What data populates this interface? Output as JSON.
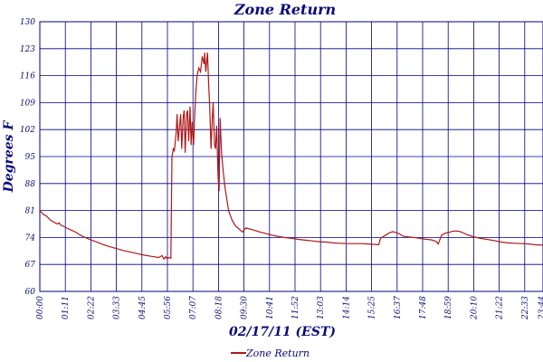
{
  "chart_data": {
    "type": "line",
    "title": "Zone Return",
    "xlabel": "02/17/11 (EST)",
    "ylabel": "Degrees F",
    "ylim": [
      60,
      130
    ],
    "yticks": [
      60,
      67,
      74,
      81,
      88,
      95,
      102,
      109,
      116,
      123,
      130
    ],
    "xlim": [
      0,
      1440
    ],
    "xtick_labels": [
      "00:00",
      "01:11",
      "02:22",
      "03:33",
      "04:45",
      "05:56",
      "07:07",
      "08:18",
      "09:30",
      "10:41",
      "11:52",
      "13:03",
      "14:14",
      "15:25",
      "16:37",
      "17:48",
      "18:59",
      "20:10",
      "21:22",
      "22:33",
      "23:44",
      "23:44"
    ],
    "grid": true,
    "legend_position": "bottom-center",
    "colors": {
      "series": "#b01818",
      "grid": "#000080",
      "text": "#0a0a7a"
    },
    "series": [
      {
        "name": "Zone Return",
        "x": [
          0,
          10,
          20,
          30,
          40,
          50,
          55,
          60,
          70,
          80,
          100,
          120,
          140,
          160,
          180,
          200,
          220,
          240,
          260,
          280,
          300,
          320,
          340,
          350,
          355,
          360,
          365,
          370,
          375,
          378,
          382,
          385,
          390,
          393,
          396,
          400,
          403,
          406,
          410,
          413,
          416,
          420,
          423,
          426,
          430,
          433,
          436,
          440,
          443,
          446,
          450,
          455,
          460,
          465,
          470,
          472,
          475,
          480,
          483,
          486,
          490,
          493,
          496,
          500,
          503,
          506,
          510,
          513,
          516,
          520,
          525,
          530,
          535,
          540,
          550,
          560,
          570,
          580,
          590,
          600,
          610,
          620,
          630,
          640,
          660,
          680,
          700,
          720,
          740,
          760,
          780,
          800,
          820,
          840,
          860,
          880,
          900,
          920,
          940,
          960,
          970,
          975,
          980,
          990,
          1000,
          1010,
          1020,
          1030,
          1040,
          1060,
          1080,
          1100,
          1120,
          1130,
          1135,
          1140,
          1150,
          1160,
          1170,
          1180,
          1190,
          1200,
          1210,
          1220,
          1240,
          1260,
          1280,
          1300,
          1320,
          1340,
          1360,
          1380,
          1400,
          1420,
          1440
        ],
        "y": [
          81,
          80,
          79.5,
          78.5,
          78,
          77.5,
          77.8,
          77.2,
          76.8,
          76.3,
          75.5,
          74.4,
          73.6,
          72.9,
          72.2,
          71.6,
          71.1,
          70.6,
          70.2,
          69.8,
          69.4,
          69.1,
          68.8,
          69.3,
          68.4,
          69,
          68.5,
          68.8,
          68.6,
          95,
          97,
          96.5,
          101,
          106,
          99,
          103,
          106,
          97,
          105,
          107,
          96,
          106,
          107,
          99,
          108,
          98,
          104,
          98,
          105,
          111,
          116,
          118,
          117,
          121,
          119,
          122,
          117,
          122,
          114,
          108,
          97,
          104,
          109,
          98,
          97,
          103,
          90,
          86,
          105,
          96,
          91,
          87,
          84,
          81,
          78.5,
          77,
          76.2,
          75.4,
          76.5,
          76.2,
          76,
          75.7,
          75.4,
          75.2,
          74.7,
          74.3,
          74,
          73.8,
          73.5,
          73.3,
          73.1,
          72.9,
          72.8,
          72.6,
          72.5,
          72.4,
          72.4,
          72.4,
          72.3,
          72.2,
          72.1,
          73.8,
          74.1,
          74.6,
          75.2,
          75.5,
          75.3,
          74.9,
          74.3,
          74.1,
          73.9,
          73.6,
          73.4,
          73.1,
          72.9,
          72.3,
          74.6,
          75.1,
          75.3,
          75.6,
          75.7,
          75.6,
          75.3,
          74.8,
          74.2,
          73.8,
          73.5,
          73.2,
          72.8,
          72.6,
          72.5,
          72.4,
          72.3,
          72.1,
          72.0
        ]
      }
    ]
  }
}
